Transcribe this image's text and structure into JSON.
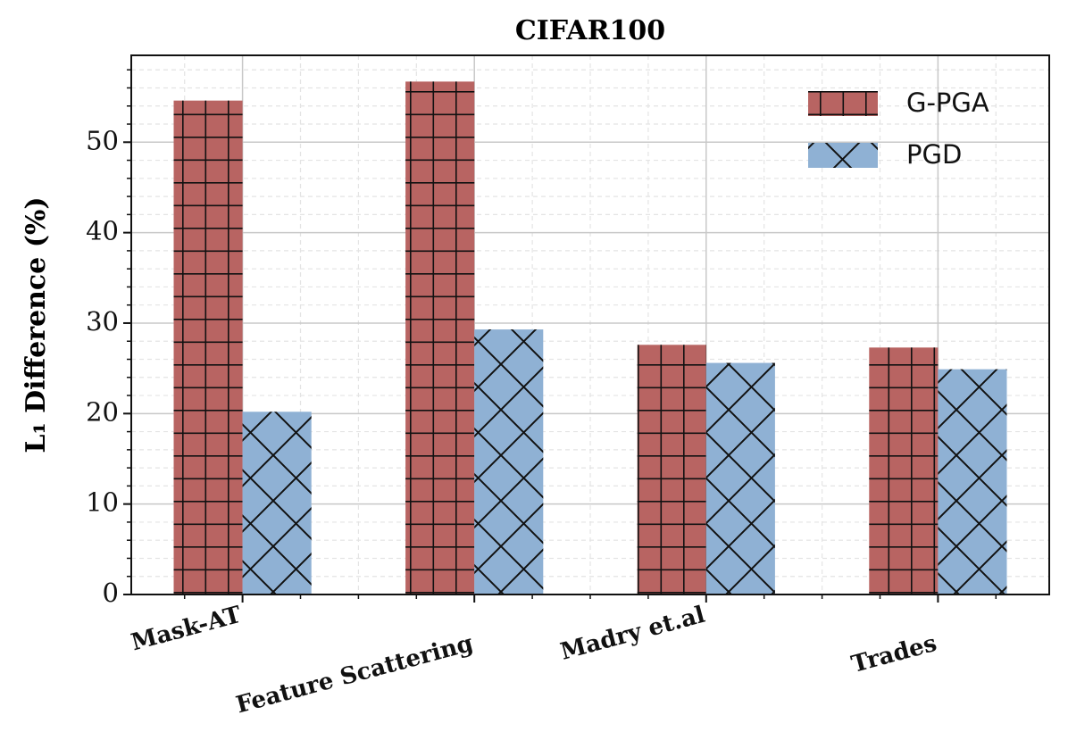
{
  "chart_data": {
    "type": "bar",
    "title": "CIFAR100",
    "y_label": "L₁ Difference (%)",
    "categories": [
      "Mask-AT",
      "Feature Scattering",
      "Madry et.al",
      "Trades"
    ],
    "series": [
      {
        "name": "G-PGA",
        "color": "#b86462",
        "hatch": "+",
        "values": [
          54.6,
          56.7,
          27.6,
          27.3
        ]
      },
      {
        "name": "PGD",
        "color": "#8fb1d4",
        "hatch": "x",
        "values": [
          20.2,
          29.3,
          25.6,
          24.9
        ]
      }
    ],
    "ylim": [
      0,
      59.6
    ],
    "yticks": [
      0,
      10,
      20,
      30,
      40,
      50
    ],
    "grid": true,
    "legend": "upper right"
  }
}
